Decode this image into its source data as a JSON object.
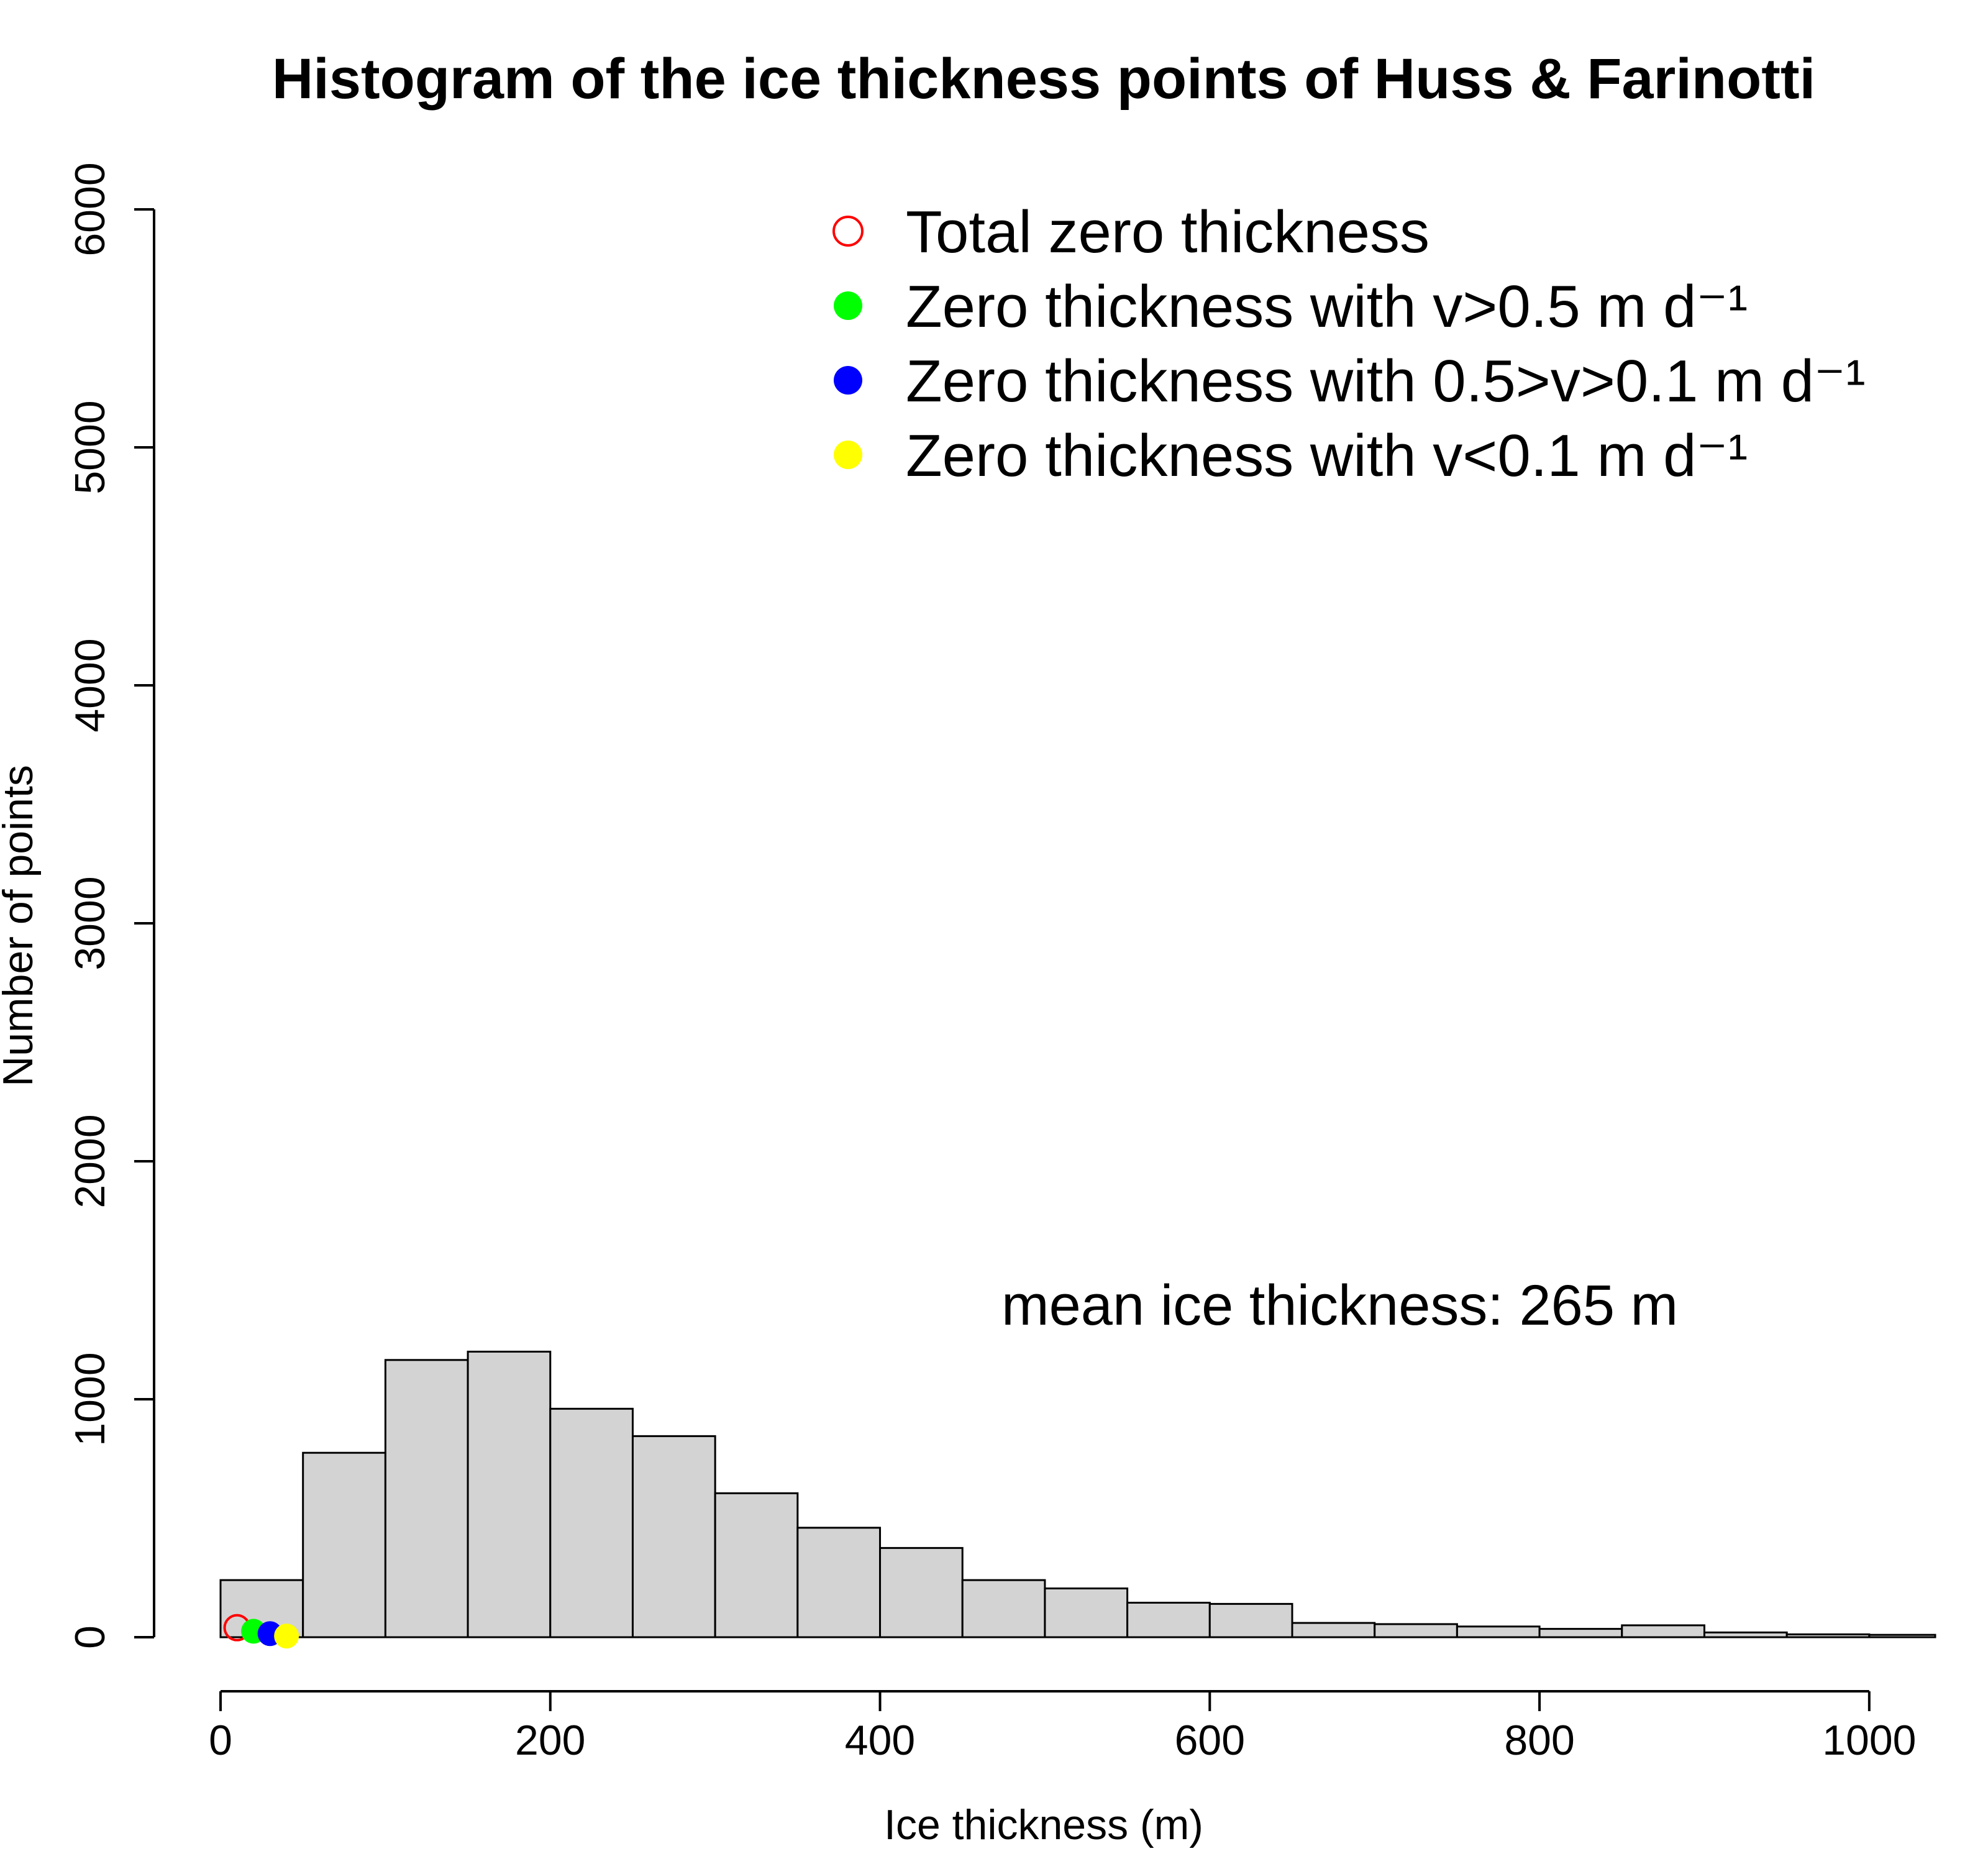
{
  "chart_data": {
    "type": "bar",
    "title": "Histogram of the ice thickness points of Huss & Farinotti",
    "xlabel": "Ice thickness (m)",
    "ylabel": "Number of points",
    "xlim": [
      0,
      1040
    ],
    "ylim": [
      0,
      6000
    ],
    "x_ticks": [
      0,
      200,
      400,
      600,
      800,
      1000
    ],
    "y_ticks": [
      0,
      1000,
      2000,
      3000,
      4000,
      5000,
      6000
    ],
    "grid": false,
    "legend_position": "top-right",
    "bins": [
      {
        "x0": 0,
        "x1": 50,
        "count": 240
      },
      {
        "x0": 50,
        "x1": 100,
        "count": 775
      },
      {
        "x0": 100,
        "x1": 150,
        "count": 1165
      },
      {
        "x0": 150,
        "x1": 200,
        "count": 1200
      },
      {
        "x0": 200,
        "x1": 250,
        "count": 960
      },
      {
        "x0": 250,
        "x1": 300,
        "count": 845
      },
      {
        "x0": 300,
        "x1": 350,
        "count": 605
      },
      {
        "x0": 350,
        "x1": 400,
        "count": 460
      },
      {
        "x0": 400,
        "x1": 450,
        "count": 375
      },
      {
        "x0": 450,
        "x1": 500,
        "count": 240
      },
      {
        "x0": 500,
        "x1": 550,
        "count": 205
      },
      {
        "x0": 550,
        "x1": 600,
        "count": 145
      },
      {
        "x0": 600,
        "x1": 650,
        "count": 140
      },
      {
        "x0": 650,
        "x1": 700,
        "count": 60
      },
      {
        "x0": 700,
        "x1": 750,
        "count": 55
      },
      {
        "x0": 750,
        "x1": 800,
        "count": 45
      },
      {
        "x0": 800,
        "x1": 850,
        "count": 35
      },
      {
        "x0": 850,
        "x1": 900,
        "count": 50
      },
      {
        "x0": 900,
        "x1": 950,
        "count": 20
      },
      {
        "x0": 950,
        "x1": 1000,
        "count": 12
      },
      {
        "x0": 1000,
        "x1": 1040,
        "count": 10
      }
    ],
    "markers": [
      {
        "name": "Total zero thickness",
        "x": 10,
        "y": 40,
        "color": "#ff0000",
        "filled": false
      },
      {
        "name": "Zero thickness with v>0.5 m d⁻¹",
        "x": 20,
        "y": 25,
        "color": "#00ff00",
        "filled": true
      },
      {
        "name": "Zero thickness with 0.5>v>0.1 m d⁻¹",
        "x": 30,
        "y": 15,
        "color": "#0000ff",
        "filled": true
      },
      {
        "name": "Zero thickness with v<0.1 m d⁻¹",
        "x": 40,
        "y": 5,
        "color": "#ffff00",
        "filled": true
      }
    ],
    "legend": [
      {
        "label": "Total zero thickness",
        "color": "#ff0000",
        "filled": false
      },
      {
        "label": "Zero thickness with v>0.5 m d⁻¹",
        "color": "#00ff00",
        "filled": true
      },
      {
        "label": "Zero thickness with 0.5>v>0.1 m d⁻¹",
        "color": "#0000ff",
        "filled": true
      },
      {
        "label": "Zero thickness with v<0.1 m d⁻¹",
        "color": "#ffff00",
        "filled": true
      }
    ],
    "annotation": "mean ice thickness: 265 m"
  }
}
